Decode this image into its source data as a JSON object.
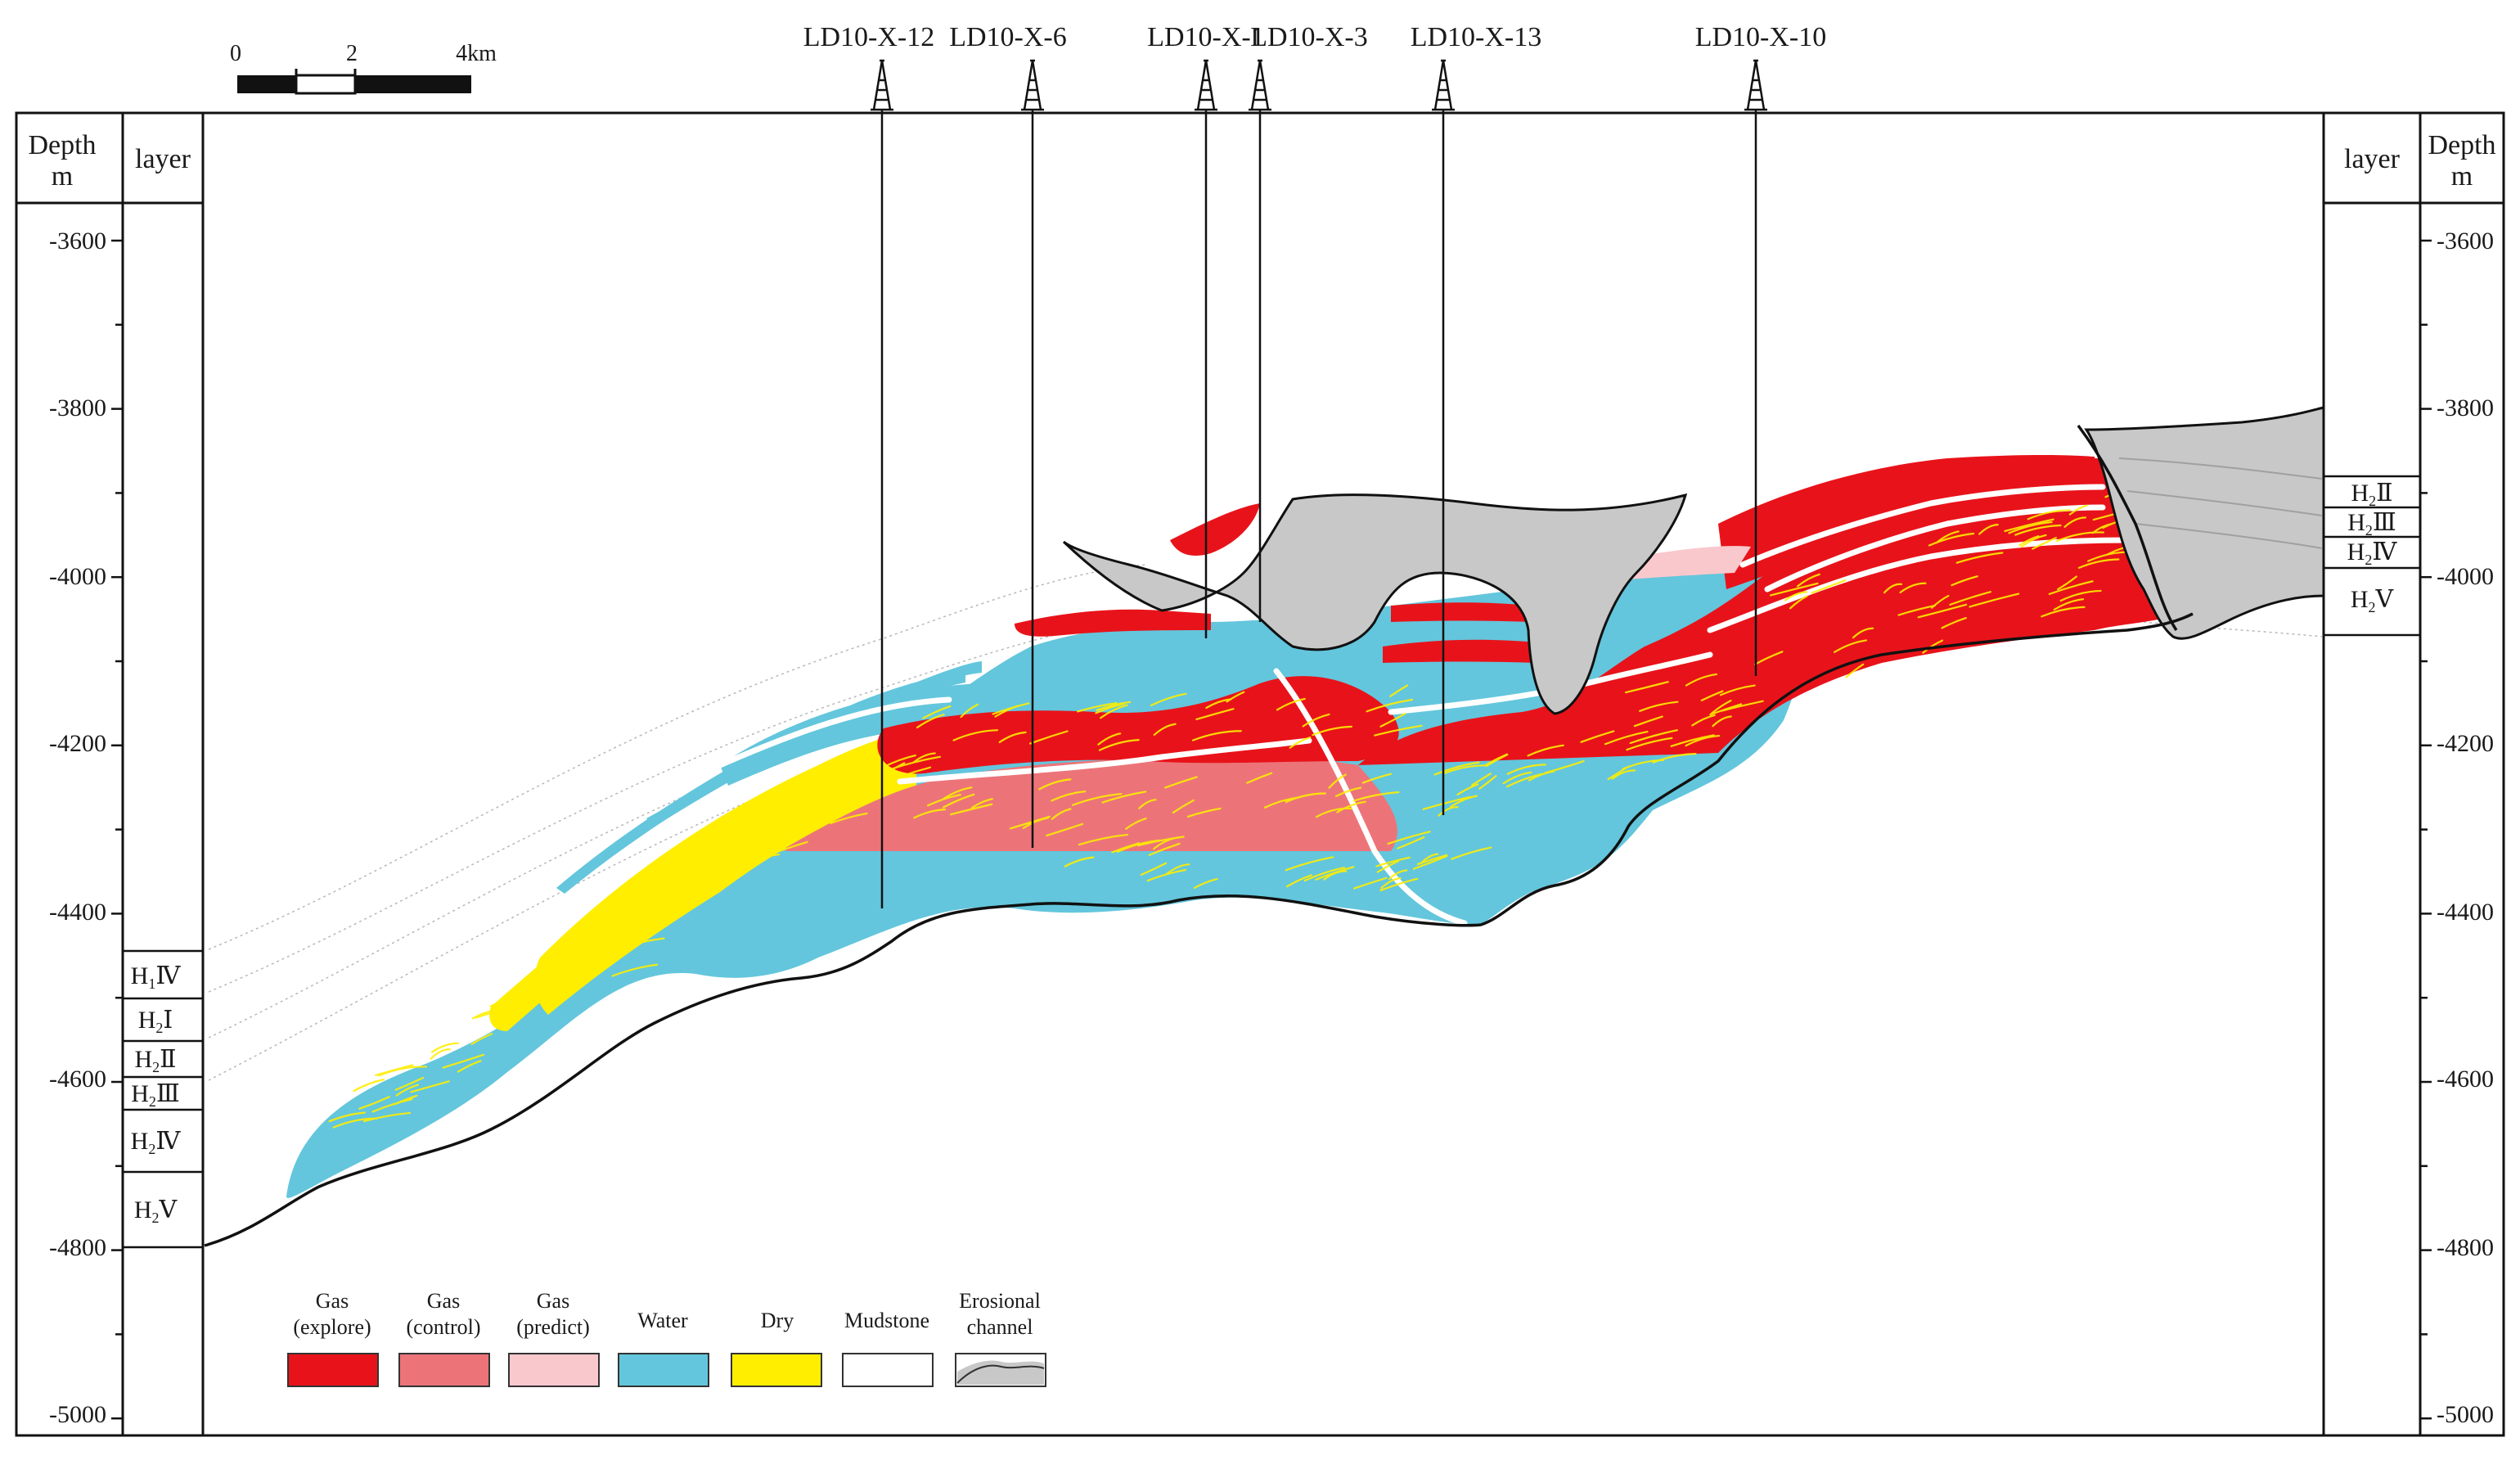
{
  "figure": {
    "scale_bar": {
      "labels": [
        "0",
        "2",
        "4km"
      ]
    },
    "left_axis": {
      "depth_header": [
        "Depth",
        "m"
      ],
      "layer_header": "layer"
    },
    "right_axis": {
      "depth_header": [
        "Depth",
        "m"
      ],
      "layer_header": "layer"
    },
    "depth_ticks": [
      "-3600",
      "-3800",
      "-4000",
      "-4200",
      "-4400",
      "-4600",
      "-4800",
      "-5000"
    ],
    "depth_values": [
      -3600,
      -3800,
      -4000,
      -4200,
      -4400,
      -4600,
      -4800,
      -5000
    ],
    "wells": [
      {
        "name": "LD10-X-12"
      },
      {
        "name": "LD10-X-6"
      },
      {
        "name": "LD10-X-1"
      },
      {
        "name": "LD10-X-3"
      },
      {
        "name": "LD10-X-13"
      },
      {
        "name": "LD10-X-10"
      }
    ],
    "left_layers": [
      {
        "main": "H",
        "sub": "1",
        "roman": "Ⅳ"
      },
      {
        "main": "H",
        "sub": "2",
        "roman": "Ⅰ"
      },
      {
        "main": "H",
        "sub": "2",
        "roman": "Ⅱ"
      },
      {
        "main": "H",
        "sub": "2",
        "roman": "Ⅲ"
      },
      {
        "main": "H",
        "sub": "2",
        "roman": "Ⅳ"
      },
      {
        "main": "H",
        "sub": "2",
        "roman": "Ⅴ"
      }
    ],
    "right_layers": [
      {
        "main": "H",
        "sub": "2",
        "roman": "Ⅱ"
      },
      {
        "main": "H",
        "sub": "2",
        "roman": "Ⅲ"
      },
      {
        "main": "H",
        "sub": "2",
        "roman": "Ⅳ"
      },
      {
        "main": "H",
        "sub": "2",
        "roman": "Ⅴ"
      }
    ],
    "legend": [
      {
        "line1": "Gas",
        "line2": "(explore)",
        "color": "#e8131a"
      },
      {
        "line1": "Gas",
        "line2": "(control)",
        "color": "#ec7479"
      },
      {
        "line1": "Gas",
        "line2": "(predict)",
        "color": "#f9c8cc"
      },
      {
        "line1": "Water",
        "line2": "",
        "color": "#63c6dc"
      },
      {
        "line1": "Dry",
        "line2": "",
        "color": "#ffee00"
      },
      {
        "line1": "Mudstone",
        "line2": "",
        "color": "#ffffff"
      },
      {
        "line1": "Erosional",
        "line2": "channel",
        "color": "#c8c8c8"
      }
    ],
    "colors": {
      "gas_explore": "#e8131a",
      "gas_control": "#ec7479",
      "gas_predict": "#f9c8cc",
      "water": "#63c6dc",
      "dry": "#ffee00",
      "channel": "#c8c8c8"
    }
  }
}
